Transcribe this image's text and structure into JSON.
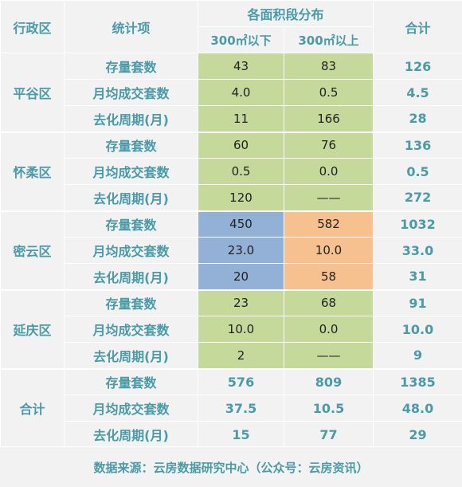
{
  "header": {
    "district": "行政区",
    "item": "统计项",
    "area_group": "各面积段分布",
    "below_300": "300㎡以下",
    "above_300": "300㎡以上",
    "total": "合计"
  },
  "row_labels": {
    "stock": "存量套数",
    "monthly": "月均成交套数",
    "cycle": "去化周期(月)"
  },
  "districts": [
    {
      "name": "平谷区",
      "rows": [
        {
          "below": "43",
          "above": "83",
          "total": "126"
        },
        {
          "below": "4.0",
          "above": "0.5",
          "total": "4.5"
        },
        {
          "below": "11",
          "above": "166",
          "total": "28"
        }
      ]
    },
    {
      "name": "怀柔区",
      "rows": [
        {
          "below": "60",
          "above": "76",
          "total": "136"
        },
        {
          "below": "0.5",
          "above": "0.0",
          "total": "0.5"
        },
        {
          "below": "120",
          "above": "——",
          "total": "272"
        }
      ]
    },
    {
      "name": "密云区",
      "rows": [
        {
          "below": "450",
          "above": "582",
          "total": "1032"
        },
        {
          "below": "23.0",
          "above": "10.0",
          "total": "33.0"
        },
        {
          "below": "20",
          "above": "58",
          "total": "31"
        }
      ]
    },
    {
      "name": "延庆区",
      "rows": [
        {
          "below": "23",
          "above": "68",
          "total": "91"
        },
        {
          "below": "10.0",
          "above": "0.0",
          "total": "10.0"
        },
        {
          "below": "2",
          "above": "——",
          "total": "9"
        }
      ]
    },
    {
      "name": "合计",
      "rows": [
        {
          "below": "576",
          "above": "809",
          "total": "1385"
        },
        {
          "below": "37.5",
          "above": "10.5",
          "total": "48.0"
        },
        {
          "below": "15",
          "above": "77",
          "total": "29"
        }
      ]
    }
  ],
  "footer": "数据来源：云房数据研究中心（公众号：云房资讯）",
  "colors": {
    "text_accent": "#4a9aa8",
    "green_fill": "#c5d99a",
    "blue_fill": "#93b1d6",
    "orange_fill": "#f7c08f",
    "background": "#f2f2f2"
  }
}
